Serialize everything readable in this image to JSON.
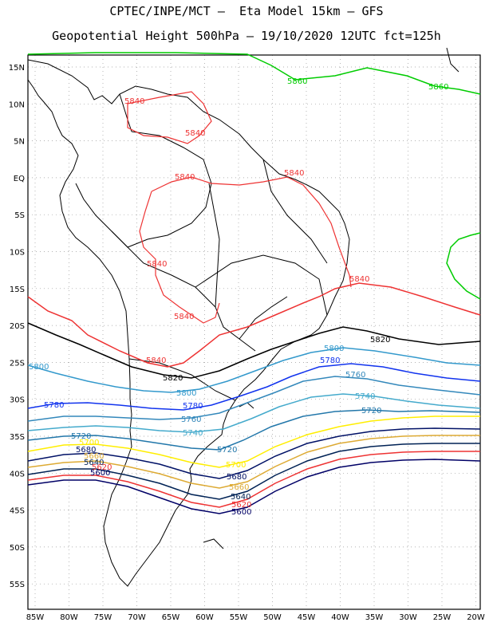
{
  "title_line1": "CPTEC/INPE/MCT –  Eta Model 15km – GFS",
  "title_line2": "Geopotential Height 500hPa – 19/10/2020 12UTC fct=125h",
  "lat_labels": [
    "15N",
    "10N",
    "5N",
    "EQ",
    "5S",
    "10S",
    "15S",
    "20S",
    "25S",
    "30S",
    "35S",
    "40S",
    "45S",
    "50S",
    "55S"
  ],
  "lon_labels": [
    "85W",
    "80W",
    "75W",
    "70W",
    "65W",
    "60W",
    "55W",
    "50W",
    "45W",
    "40W",
    "35W",
    "30W",
    "25W",
    "20W"
  ],
  "contour_labels": {
    "c5860": "5860",
    "c5840": "5840",
    "c5820": "5820",
    "c5800": "5800",
    "c5780": "5780",
    "c5760": "5760",
    "c5740": "5740",
    "c5720": "5720",
    "c5700": "5700",
    "c5680": "5680",
    "c5660": "5660",
    "c5640": "5640",
    "c5620": "5620",
    "c5600": "5600"
  },
  "colors": {
    "c5860": "#00cc00",
    "c5840": "#ee3333",
    "c5820": "#000000",
    "c5800": "#3399cc",
    "c5780": "#1133ee",
    "c5760": "#3388bb",
    "c5740": "#44aacc",
    "c5720": "#2277aa",
    "c5700": "#ffee00",
    "c5680": "#001166",
    "c5660": "#ddaa33",
    "c5640": "#002255",
    "c5620": "#ee3333",
    "c5600": "#000066"
  }
}
